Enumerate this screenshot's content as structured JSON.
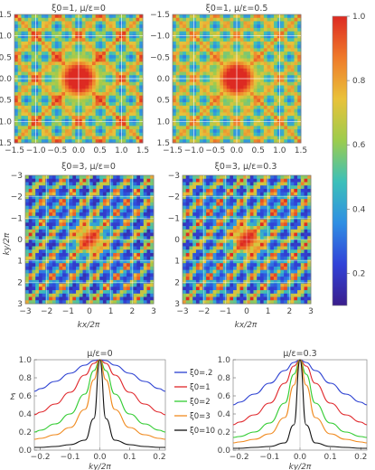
{
  "colorbar": {
    "ticks": [
      "1.0",
      "0.8",
      "0.6",
      "0.4",
      "0.2"
    ],
    "tick_values": [
      1.0,
      0.8,
      0.6,
      0.4,
      0.2
    ],
    "range": [
      0.1,
      1.0
    ],
    "colormap": "rainbow",
    "colors": [
      "#3a1e8c",
      "#3142d8",
      "#2f8fe3",
      "#3cc0b9",
      "#9dcc4d",
      "#e9c23a",
      "#ef7a2a",
      "#dd2a22"
    ]
  },
  "panels": [
    {
      "title": "ξ0=1, μ/ε=0",
      "xticks": [
        "−1.5",
        "−1.0",
        "−0.5",
        "0.0",
        "0.5",
        "1.0",
        "1.5"
      ],
      "yticks": [
        "1.5",
        "1.0",
        "0.5",
        "0.0",
        "−0.5",
        "−1.0",
        "−1.5"
      ],
      "xlabel": "",
      "ylabel": ""
    },
    {
      "title": "ξ0=1, μ/ε=0.5",
      "xticks": [
        "−1.5",
        "−1.0",
        "−0.5",
        "0.0",
        "0.5",
        "1.0",
        "1.5"
      ],
      "yticks": [
        "1.5",
        "1.0",
        "0.5",
        "0.0",
        "−0.5",
        "−1.0",
        "−1.5"
      ],
      "xlabel": "",
      "ylabel": ""
    },
    {
      "title": "ξ0=3, μ/ε=0",
      "xticks": [
        "−3",
        "−2",
        "−1",
        "0",
        "1",
        "2",
        "3"
      ],
      "yticks": [
        "3",
        "2",
        "1",
        "0",
        "−1",
        "−2",
        "−3"
      ],
      "xlabel": "kx/2π",
      "ylabel": "ky/2π"
    },
    {
      "title": "ξ0=3, μ/ε=0.3",
      "xticks": [
        "−3",
        "−2",
        "−1",
        "0",
        "1",
        "2",
        "3"
      ],
      "yticks": [
        "3",
        "2",
        "1",
        "0",
        "−1",
        "−2",
        "−3"
      ],
      "xlabel": "kx/2π",
      "ylabel": ""
    }
  ],
  "chart_data": [
    {
      "type": "heatmap",
      "title": "ξ0=1, μ/ε=0",
      "xlim": [
        -1.5,
        1.5
      ],
      "ylim": [
        -1.5,
        1.5
      ],
      "grid": true,
      "colorbar_range": [
        0.1,
        1.0
      ]
    },
    {
      "type": "heatmap",
      "title": "ξ0=1, μ/ε=0.5",
      "xlim": [
        -1.5,
        1.5
      ],
      "ylim": [
        -1.5,
        1.5
      ],
      "grid": true,
      "colorbar_range": [
        0.1,
        1.0
      ]
    },
    {
      "type": "heatmap",
      "title": "ξ0=3, μ/ε=0",
      "xlabel": "kx/2π",
      "ylabel": "ky/2π",
      "xlim": [
        -3,
        3
      ],
      "ylim": [
        -3,
        3
      ],
      "grid": true,
      "colorbar_range": [
        0.1,
        1.0
      ]
    },
    {
      "type": "heatmap",
      "title": "ξ0=3, μ/ε=0.3",
      "xlabel": "kx/2π",
      "xlim": [
        -3,
        3
      ],
      "ylim": [
        -3,
        3
      ],
      "grid": true,
      "colorbar_range": [
        0.1,
        1.0
      ]
    },
    {
      "type": "line",
      "title": "μ/ε=0",
      "xlabel": "ky/2π",
      "ylabel": "Σ̃",
      "xlim": [
        -0.22,
        0.22
      ],
      "ylim": [
        0.0,
        1.0
      ],
      "xticks": [
        "−0.2",
        "−0.1",
        "0.0",
        "0.1",
        "0.2"
      ],
      "yticks": [
        "1.0",
        "0.8",
        "0.6",
        "0.4",
        "0.2",
        "0.0"
      ],
      "x": [
        -0.22,
        -0.2,
        -0.15,
        -0.1,
        -0.05,
        -0.02,
        0.0,
        0.02,
        0.05,
        0.1,
        0.15,
        0.2,
        0.22
      ],
      "series": [
        {
          "name": "ξ0=.2",
          "color": "#2a3fd1",
          "values": [
            0.65,
            0.68,
            0.76,
            0.85,
            0.94,
            0.99,
            1.0,
            0.99,
            0.94,
            0.85,
            0.76,
            0.68,
            0.65
          ]
        },
        {
          "name": "ξ0=1",
          "color": "#e0262a",
          "values": [
            0.39,
            0.42,
            0.51,
            0.64,
            0.83,
            0.96,
            1.0,
            0.96,
            0.83,
            0.64,
            0.51,
            0.42,
            0.39
          ]
        },
        {
          "name": "ξ0=2",
          "color": "#33cc33",
          "values": [
            0.2,
            0.22,
            0.29,
            0.4,
            0.62,
            0.88,
            1.0,
            0.88,
            0.62,
            0.4,
            0.29,
            0.22,
            0.2
          ]
        },
        {
          "name": "ξ0=3",
          "color": "#f08a1f",
          "values": [
            0.12,
            0.13,
            0.17,
            0.25,
            0.45,
            0.78,
            1.0,
            0.78,
            0.45,
            0.25,
            0.17,
            0.13,
            0.12
          ]
        },
        {
          "name": "ξ0=10",
          "color": "#111111",
          "values": [
            0.03,
            0.03,
            0.04,
            0.06,
            0.11,
            0.35,
            1.0,
            0.35,
            0.11,
            0.06,
            0.04,
            0.03,
            0.03
          ]
        }
      ]
    },
    {
      "type": "line",
      "title": "μ/ε=0.3",
      "xlabel": "ky/2π",
      "xlim": [
        -0.22,
        0.22
      ],
      "ylim": [
        0.0,
        1.0
      ],
      "xticks": [
        "−0.2",
        "−0.1",
        "0.0",
        "0.1",
        "0.2"
      ],
      "yticks": [
        "1.0",
        "0.8",
        "0.6",
        "0.4",
        "0.2",
        "0.0"
      ],
      "x": [
        -0.22,
        -0.2,
        -0.15,
        -0.1,
        -0.05,
        -0.02,
        0.0,
        0.02,
        0.05,
        0.1,
        0.15,
        0.2,
        0.22
      ],
      "series": [
        {
          "name": "ξ0=.2",
          "color": "#2a3fd1",
          "values": [
            0.5,
            0.53,
            0.62,
            0.74,
            0.88,
            0.97,
            1.0,
            0.97,
            0.88,
            0.74,
            0.62,
            0.53,
            0.5
          ]
        },
        {
          "name": "ξ0=1",
          "color": "#e0262a",
          "values": [
            0.28,
            0.31,
            0.39,
            0.52,
            0.74,
            0.93,
            1.0,
            0.93,
            0.74,
            0.52,
            0.39,
            0.31,
            0.28
          ]
        },
        {
          "name": "ξ0=2",
          "color": "#33cc33",
          "values": [
            0.14,
            0.15,
            0.2,
            0.3,
            0.52,
            0.84,
            1.0,
            0.84,
            0.52,
            0.3,
            0.2,
            0.15,
            0.14
          ]
        },
        {
          "name": "ξ0=3",
          "color": "#f08a1f",
          "values": [
            0.08,
            0.09,
            0.12,
            0.18,
            0.36,
            0.72,
            1.0,
            0.72,
            0.36,
            0.18,
            0.12,
            0.09,
            0.08
          ]
        },
        {
          "name": "ξ0=10",
          "color": "#111111",
          "values": [
            0.02,
            0.02,
            0.03,
            0.04,
            0.08,
            0.28,
            1.0,
            0.28,
            0.08,
            0.04,
            0.03,
            0.02,
            0.02
          ]
        }
      ]
    }
  ]
}
